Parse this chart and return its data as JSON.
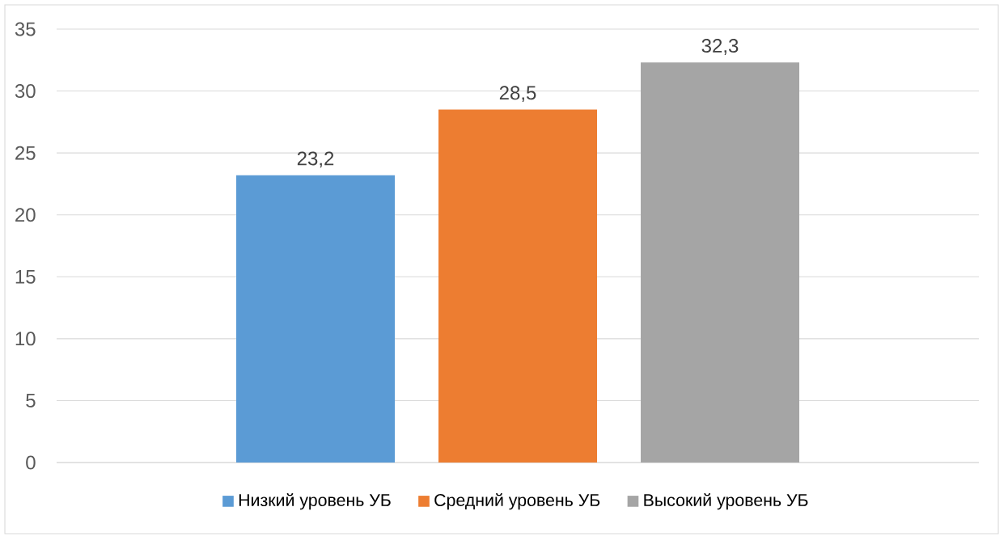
{
  "chart_data": {
    "type": "bar",
    "categories": [
      null
    ],
    "series": [
      {
        "name": "Низкий уровень УБ",
        "color": "#5b9bd5",
        "values": [
          23.2
        ],
        "value_labels": [
          "23,2"
        ]
      },
      {
        "name": "Средний уровень УБ",
        "color": "#ed7d31",
        "values": [
          28.5
        ],
        "value_labels": [
          "28,5"
        ]
      },
      {
        "name": "Высокий уровень УБ",
        "color": "#a5a5a5",
        "values": [
          32.3
        ],
        "value_labels": [
          "32,3"
        ]
      }
    ],
    "ylim": [
      0,
      35
    ],
    "yticks": [
      0,
      5,
      10,
      15,
      20,
      25,
      30,
      35
    ],
    "grid": "y",
    "legend": "bottom"
  }
}
